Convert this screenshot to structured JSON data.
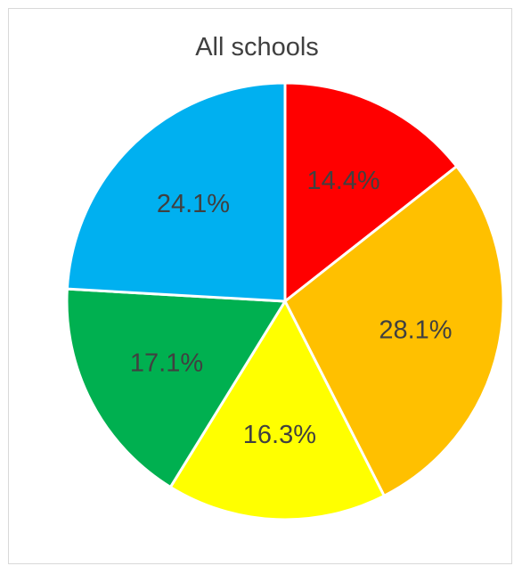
{
  "chart_data": {
    "type": "pie",
    "title": "All schools",
    "categories": [
      "",
      "",
      "",
      "",
      ""
    ],
    "values": [
      14.4,
      28.1,
      16.3,
      17.1,
      24.1
    ],
    "labels": [
      "14.4%",
      "28.1%",
      "16.3%",
      "17.1%",
      "24.1%"
    ],
    "colors": [
      "#ff0000",
      "#ffc000",
      "#ffff00",
      "#00b050",
      "#00b0f0"
    ],
    "start_angle_deg": 0,
    "direction": "clockwise",
    "legend": "none"
  }
}
